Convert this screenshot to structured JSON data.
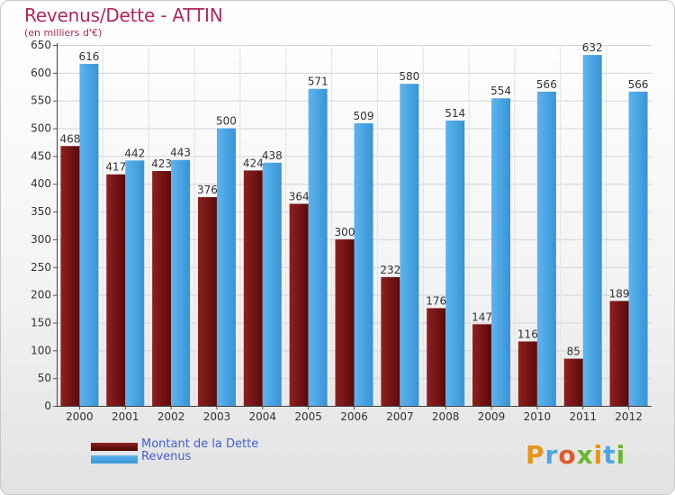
{
  "title": "Revenus/Dette - ATTIN",
  "subtitle": "(en milliers d'€)",
  "logo_text": "Proxiti",
  "colors": {
    "dette": "#7a1515",
    "revenus": "#4aa6e6",
    "title": "#b2285a",
    "legend_text": "#4060d0"
  },
  "chart_data": {
    "type": "bar",
    "title": "Revenus/Dette - ATTIN",
    "subtitle": "(en milliers d'€)",
    "categories": [
      "2000",
      "2001",
      "2002",
      "2003",
      "2004",
      "2005",
      "2006",
      "2007",
      "2008",
      "2009",
      "2010",
      "2011",
      "2012"
    ],
    "series": [
      {
        "name": "Montant de la Dette",
        "values": [
          468,
          417,
          423,
          376,
          424,
          364,
          300,
          232,
          176,
          147,
          116,
          85,
          189
        ]
      },
      {
        "name": "Revenus",
        "values": [
          616,
          442,
          443,
          500,
          438,
          571,
          509,
          580,
          514,
          554,
          566,
          632,
          566
        ]
      }
    ],
    "ylim": [
      0,
      650
    ],
    "yticks": [
      0,
      50,
      100,
      150,
      200,
      250,
      300,
      350,
      400,
      450,
      500,
      550,
      600,
      650
    ],
    "grid": true,
    "legend_position": "bottom-left"
  }
}
